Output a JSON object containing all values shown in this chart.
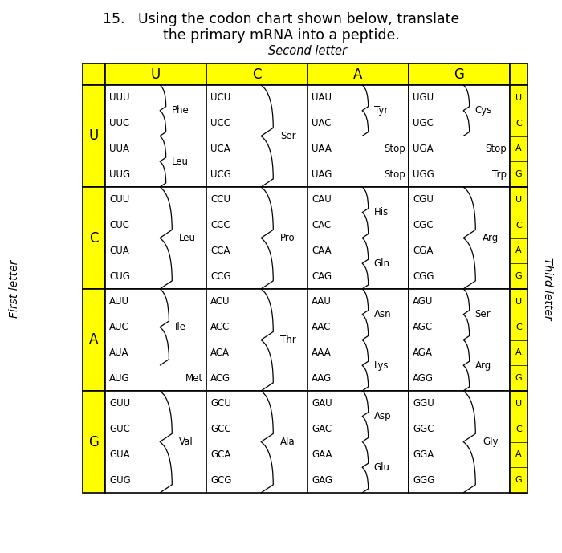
{
  "title_line1": "15.   Using the codon chart shown below, translate",
  "title_line2": "the primary mRNA into a peptide.",
  "second_letter_label": "Second letter",
  "first_letter_label": "First letter",
  "third_letter_label": "Third letter",
  "second_letters": [
    "U",
    "C",
    "A",
    "G"
  ],
  "first_letters": [
    "U",
    "C",
    "A",
    "G"
  ],
  "third_letters": [
    "U",
    "C",
    "A",
    "G"
  ],
  "yellow": "#FFFF00",
  "white": "#FFFFFF",
  "cells": {
    "UU": {
      "codons": [
        "UUU",
        "UUC",
        "UUA",
        "UUG"
      ],
      "groups": [
        {
          "aa": "Phe",
          "rows": [
            0,
            1
          ],
          "inline": false
        },
        {
          "aa": "Leu",
          "rows": [
            2,
            3
          ],
          "inline": false
        }
      ]
    },
    "UC": {
      "codons": [
        "UCU",
        "UCC",
        "UCA",
        "UCG"
      ],
      "groups": [
        {
          "aa": "Ser",
          "rows": [
            0,
            1,
            2,
            3
          ],
          "inline": false
        }
      ]
    },
    "UA": {
      "codons": [
        "UAU",
        "UAC",
        "UAA",
        "UAG"
      ],
      "groups": [
        {
          "aa": "Tyr",
          "rows": [
            0,
            1
          ],
          "inline": false
        },
        {
          "aa": "Stop",
          "rows": [
            2
          ],
          "inline": true
        },
        {
          "aa": "Stop",
          "rows": [
            3
          ],
          "inline": true
        }
      ]
    },
    "UG": {
      "codons": [
        "UGU",
        "UGC",
        "UGA",
        "UGG"
      ],
      "groups": [
        {
          "aa": "Cys",
          "rows": [
            0,
            1
          ],
          "inline": false
        },
        {
          "aa": "Stop",
          "rows": [
            2
          ],
          "inline": true
        },
        {
          "aa": "Trp",
          "rows": [
            3
          ],
          "inline": true
        }
      ]
    },
    "CU": {
      "codons": [
        "CUU",
        "CUC",
        "CUA",
        "CUG"
      ],
      "groups": [
        {
          "aa": "Leu",
          "rows": [
            0,
            1,
            2,
            3
          ],
          "inline": false
        }
      ]
    },
    "CC": {
      "codons": [
        "CCU",
        "CCC",
        "CCA",
        "CCG"
      ],
      "groups": [
        {
          "aa": "Pro",
          "rows": [
            0,
            1,
            2,
            3
          ],
          "inline": false
        }
      ]
    },
    "CA": {
      "codons": [
        "CAU",
        "CAC",
        "CAA",
        "CAG"
      ],
      "groups": [
        {
          "aa": "His",
          "rows": [
            0,
            1
          ],
          "inline": false
        },
        {
          "aa": "Gln",
          "rows": [
            2,
            3
          ],
          "inline": false
        }
      ]
    },
    "CG": {
      "codons": [
        "CGU",
        "CGC",
        "CGA",
        "CGG"
      ],
      "groups": [
        {
          "aa": "Arg",
          "rows": [
            0,
            1,
            2,
            3
          ],
          "inline": false
        }
      ]
    },
    "AU": {
      "codons": [
        "AUU",
        "AUC",
        "AUA",
        "AUG"
      ],
      "groups": [
        {
          "aa": "Ile",
          "rows": [
            0,
            1,
            2
          ],
          "inline": false
        },
        {
          "aa": "Met",
          "rows": [
            3
          ],
          "inline": true
        }
      ]
    },
    "AC": {
      "codons": [
        "ACU",
        "ACC",
        "ACA",
        "ACG"
      ],
      "groups": [
        {
          "aa": "Thr",
          "rows": [
            0,
            1,
            2,
            3
          ],
          "inline": false
        }
      ]
    },
    "AA": {
      "codons": [
        "AAU",
        "AAC",
        "AAA",
        "AAG"
      ],
      "groups": [
        {
          "aa": "Asn",
          "rows": [
            0,
            1
          ],
          "inline": false
        },
        {
          "aa": "Lys",
          "rows": [
            2,
            3
          ],
          "inline": false
        }
      ]
    },
    "AG": {
      "codons": [
        "AGU",
        "AGC",
        "AGA",
        "AGG"
      ],
      "groups": [
        {
          "aa": "Ser",
          "rows": [
            0,
            1
          ],
          "inline": false
        },
        {
          "aa": "Arg",
          "rows": [
            2,
            3
          ],
          "inline": false
        }
      ]
    },
    "GU": {
      "codons": [
        "GUU",
        "GUC",
        "GUA",
        "GUG"
      ],
      "groups": [
        {
          "aa": "Val",
          "rows": [
            0,
            1,
            2,
            3
          ],
          "inline": false
        }
      ]
    },
    "GC": {
      "codons": [
        "GCU",
        "GCC",
        "GCA",
        "GCG"
      ],
      "groups": [
        {
          "aa": "Ala",
          "rows": [
            0,
            1,
            2,
            3
          ],
          "inline": false
        }
      ]
    },
    "GA": {
      "codons": [
        "GAU",
        "GAC",
        "GAA",
        "GAG"
      ],
      "groups": [
        {
          "aa": "Asp",
          "rows": [
            0,
            1
          ],
          "inline": false
        },
        {
          "aa": "Glu",
          "rows": [
            2,
            3
          ],
          "inline": false
        }
      ]
    },
    "GG": {
      "codons": [
        "GGU",
        "GGC",
        "GGA",
        "GGG"
      ],
      "groups": [
        {
          "aa": "Gly",
          "rows": [
            0,
            1,
            2,
            3
          ],
          "inline": false
        }
      ]
    }
  }
}
